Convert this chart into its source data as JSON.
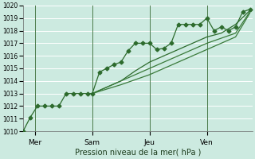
{
  "xlabel": "Pression niveau de la mer( hPa )",
  "background_color": "#cceae0",
  "grid_color": "#ffffff",
  "line_color_dark": "#2d6b2d",
  "line_color_mid": "#3a7a3a",
  "ylim": [
    1010,
    1020
  ],
  "yticks": [
    1010,
    1011,
    1012,
    1013,
    1014,
    1015,
    1016,
    1017,
    1018,
    1019,
    1020
  ],
  "xlim": [
    0,
    96
  ],
  "day_ticks": [
    5,
    29,
    53,
    77
  ],
  "day_labels": [
    "Mer",
    "Sam",
    "Jeu",
    "Ven"
  ],
  "vline_x": [
    5,
    29,
    53,
    77
  ],
  "series1_x": [
    0,
    3,
    6,
    9,
    12,
    15,
    18,
    21,
    24,
    27,
    29,
    32,
    35,
    38,
    41,
    44,
    47,
    50,
    53,
    56,
    59,
    62,
    65,
    68,
    71,
    74,
    77,
    80,
    83,
    86,
    89,
    92,
    95
  ],
  "series1_y": [
    1010.0,
    1011.1,
    1012.0,
    1012.0,
    1012.0,
    1012.0,
    1013.0,
    1013.0,
    1013.0,
    1013.0,
    1013.0,
    1014.7,
    1015.0,
    1015.3,
    1015.5,
    1016.4,
    1017.0,
    1017.0,
    1017.0,
    1016.5,
    1016.6,
    1017.0,
    1018.5,
    1018.5,
    1018.5,
    1018.5,
    1019.0,
    1018.0,
    1018.3,
    1018.0,
    1018.3,
    1019.5,
    1019.7
  ],
  "series2_x": [
    29,
    35,
    41,
    47,
    53,
    59,
    65,
    71,
    77,
    83,
    89,
    95
  ],
  "series2_y": [
    1013.0,
    1013.5,
    1014.0,
    1014.8,
    1015.5,
    1016.0,
    1016.5,
    1017.0,
    1017.5,
    1017.8,
    1018.5,
    1019.6
  ],
  "series3_x": [
    29,
    41,
    53,
    65,
    77,
    89,
    95
  ],
  "series3_y": [
    1013.0,
    1014.0,
    1015.0,
    1016.0,
    1017.0,
    1017.8,
    1019.5
  ],
  "series4_x": [
    29,
    41,
    53,
    65,
    77,
    89,
    95
  ],
  "series4_y": [
    1013.0,
    1013.7,
    1014.5,
    1015.5,
    1016.5,
    1017.5,
    1019.4
  ],
  "marker": "D",
  "markersize": 2.5,
  "linewidth": 0.9
}
